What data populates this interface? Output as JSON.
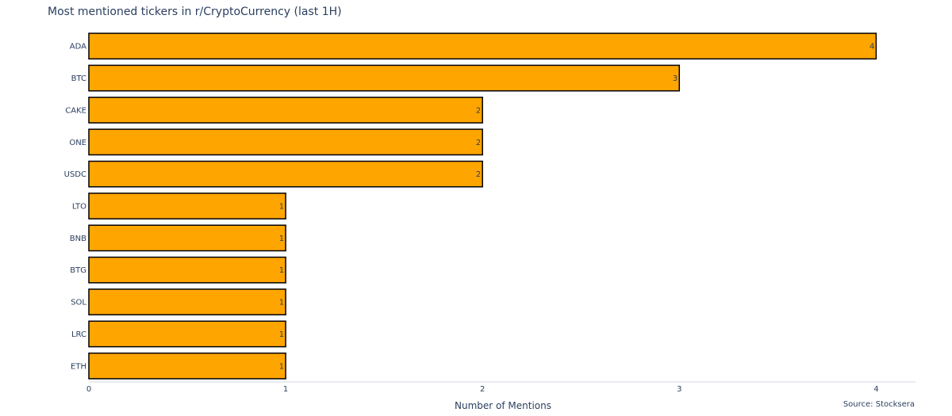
{
  "chart_data": {
    "type": "bar",
    "orientation": "horizontal",
    "title": "Most mentioned tickers in r/CryptoCurrency (last 1H)",
    "xlabel": "Number of Mentions",
    "ylabel": "",
    "categories": [
      "ADA",
      "BTC",
      "CAKE",
      "ONE",
      "USDC",
      "LTO",
      "BNB",
      "BTG",
      "SOL",
      "LRC",
      "ETH"
    ],
    "values": [
      4,
      3,
      2,
      2,
      2,
      1,
      1,
      1,
      1,
      1,
      1
    ],
    "x_ticks": [
      "0",
      "1",
      "2",
      "3",
      "4"
    ],
    "xlim": [
      0,
      4.2
    ],
    "grid": false,
    "legend": "none",
    "data_labels": true,
    "annotation": "Source: Stocksera",
    "colors": {
      "bar_fill": "#FFA500",
      "bar_stroke": "#000000",
      "text": "#2a3f5f",
      "axis_line": "#d0d7e2"
    }
  }
}
